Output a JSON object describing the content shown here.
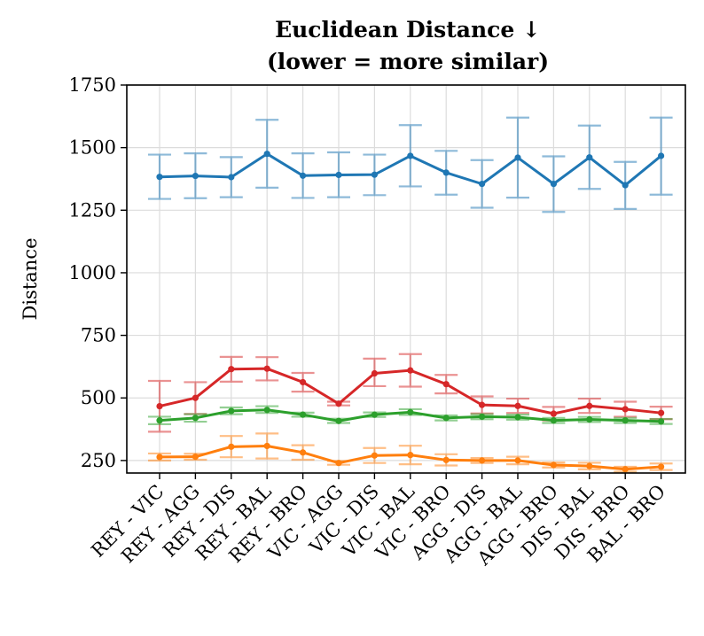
{
  "chart_data": {
    "type": "line",
    "title": "Euclidean Distance ↓",
    "subtitle": "(lower = more similar)",
    "xlabel": "",
    "ylabel": "Distance",
    "ylim": [
      200,
      1750
    ],
    "yticks": [
      250,
      500,
      750,
      1000,
      1250,
      1500,
      1750
    ],
    "grid": true,
    "legend": "none",
    "categories": [
      "REY - VIC",
      "REY - AGG",
      "REY - DIS",
      "REY - BAL",
      "REY - BRO",
      "VIC - AGG",
      "VIC - DIS",
      "VIC - BAL",
      "VIC - BRO",
      "AGG - DIS",
      "AGG - BAL",
      "AGG - BRO",
      "DIS - BAL",
      "DIS - BRO",
      "BAL - BRO"
    ],
    "series": [
      {
        "color": "#1f77b4",
        "values": [
          1383,
          1387,
          1382,
          1475,
          1388,
          1391,
          1392,
          1467,
          1400,
          1355,
          1460,
          1355,
          1461,
          1350,
          1467
        ],
        "err_low": [
          1295,
          1298,
          1302,
          1340,
          1299,
          1302,
          1310,
          1345,
          1312,
          1260,
          1300,
          1243,
          1335,
          1255,
          1312
        ],
        "err_high": [
          1472,
          1477,
          1462,
          1611,
          1477,
          1481,
          1472,
          1590,
          1487,
          1450,
          1620,
          1465,
          1588,
          1443,
          1620
        ]
      },
      {
        "color": "#d62728",
        "values": [
          467,
          500,
          615,
          617,
          563,
          477,
          598,
          610,
          555,
          472,
          468,
          437,
          468,
          455,
          440
        ],
        "err_low": [
          365,
          436,
          565,
          570,
          525,
          470,
          547,
          545,
          518,
          438,
          440,
          410,
          440,
          425,
          415
        ],
        "err_high": [
          568,
          563,
          664,
          663,
          600,
          485,
          657,
          675,
          592,
          506,
          497,
          464,
          497,
          485,
          465
        ]
      },
      {
        "color": "#2ca02c",
        "values": [
          410,
          420,
          448,
          452,
          433,
          408,
          433,
          443,
          420,
          425,
          423,
          410,
          414,
          410,
          406
        ],
        "err_low": [
          395,
          405,
          435,
          440,
          425,
          400,
          424,
          432,
          410,
          415,
          413,
          400,
          404,
          400,
          396
        ],
        "err_high": [
          425,
          435,
          462,
          467,
          441,
          417,
          442,
          455,
          430,
          435,
          433,
          420,
          424,
          420,
          416
        ]
      },
      {
        "color": "#ff7f0e",
        "values": [
          264,
          265,
          305,
          308,
          282,
          240,
          270,
          272,
          252,
          250,
          250,
          232,
          228,
          215,
          225
        ],
        "err_low": [
          250,
          253,
          263,
          258,
          253,
          233,
          240,
          235,
          230,
          240,
          235,
          222,
          215,
          205,
          212
        ],
        "err_high": [
          278,
          277,
          348,
          358,
          311,
          248,
          300,
          309,
          275,
          260,
          265,
          242,
          241,
          225,
          238
        ]
      }
    ]
  }
}
